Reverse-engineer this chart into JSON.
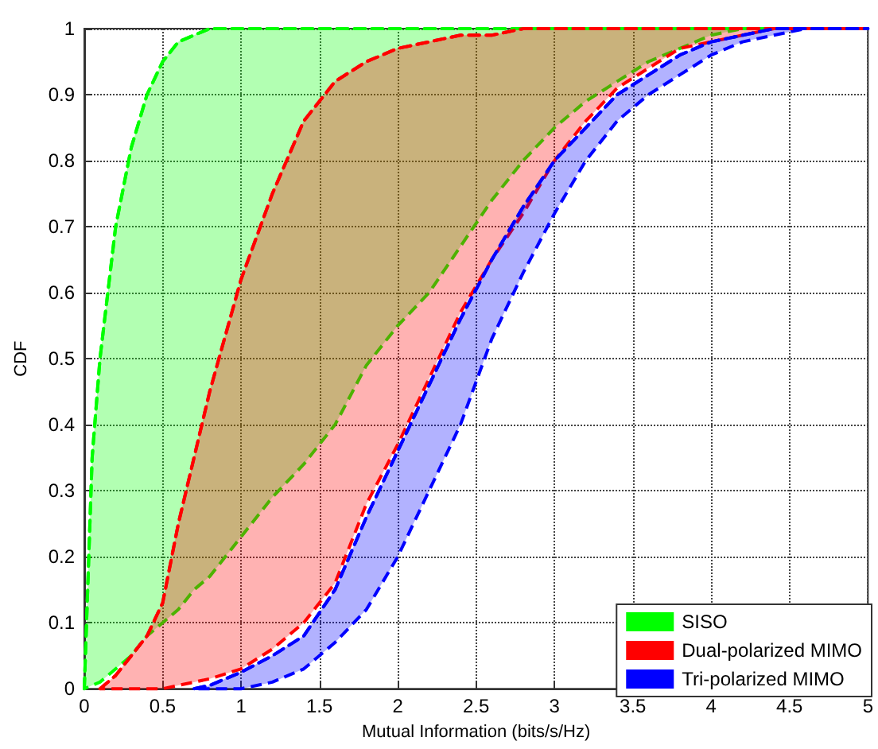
{
  "chart_data": {
    "type": "line",
    "xlabel": "Mutual Information (bits/s/Hz)",
    "ylabel": "CDF",
    "x": [
      0,
      0.05,
      0.1,
      0.2,
      0.3,
      0.4,
      0.5,
      0.6,
      0.7,
      0.8,
      1.0,
      1.2,
      1.4,
      1.6,
      1.8,
      2.0,
      2.2,
      2.4,
      2.6,
      2.8,
      3.0,
      3.2,
      3.4,
      3.6,
      3.8,
      4.0,
      4.2,
      4.4,
      4.6,
      4.8,
      5.0
    ],
    "series": [
      {
        "name": "SISO",
        "color": "#00ff00",
        "values": [
          0,
          0.35,
          0.5,
          0.7,
          0.82,
          0.9,
          0.95,
          0.98,
          0.99,
          1,
          1,
          1,
          1,
          1,
          1,
          1,
          1,
          1,
          1,
          1,
          1,
          1,
          1,
          1,
          1,
          1,
          1,
          1,
          null,
          null,
          null
        ],
        "upper": [
          0,
          0.35,
          0.5,
          0.7,
          0.82,
          0.9,
          0.95,
          0.98,
          0.99,
          1,
          1,
          1,
          1,
          1,
          1,
          1,
          1,
          1,
          1,
          1,
          1,
          1,
          1,
          1,
          1,
          1,
          1,
          1,
          null,
          null,
          null
        ],
        "lower": [
          0,
          0.005,
          0.01,
          0.03,
          0.05,
          0.08,
          0.1,
          0.12,
          0.15,
          0.17,
          0.23,
          0.29,
          0.34,
          0.4,
          0.49,
          0.55,
          0.6,
          0.67,
          0.74,
          0.8,
          0.85,
          0.89,
          0.92,
          0.95,
          0.97,
          0.99,
          1,
          1,
          null,
          null,
          null
        ]
      },
      {
        "name": "Dual-polarized MIMO",
        "color": "#ff0000",
        "values": [
          null,
          null,
          0,
          0.02,
          0.05,
          0.08,
          0.13,
          0.25,
          0.35,
          0.45,
          0.62,
          0.75,
          0.86,
          0.92,
          0.95,
          0.97,
          0.98,
          0.99,
          0.99,
          1,
          1,
          1,
          1,
          1,
          1,
          1,
          1,
          1,
          1,
          1,
          1
        ],
        "upper": [
          null,
          null,
          0,
          0.02,
          0.05,
          0.08,
          0.13,
          0.25,
          0.35,
          0.45,
          0.62,
          0.75,
          0.86,
          0.92,
          0.95,
          0.97,
          0.98,
          0.99,
          0.99,
          1,
          1,
          1,
          1,
          1,
          1,
          1,
          1,
          1,
          1,
          1,
          1
        ],
        "lower": [
          null,
          null,
          0,
          0,
          0,
          0,
          0,
          0.005,
          0.01,
          0.015,
          0.03,
          0.06,
          0.1,
          0.16,
          0.28,
          0.37,
          0.47,
          0.57,
          0.65,
          0.72,
          0.8,
          0.86,
          0.91,
          0.94,
          0.97,
          0.98,
          0.99,
          1,
          1,
          1,
          1
        ]
      },
      {
        "name": "Tri-polarized MIMO",
        "color": "#0000ff",
        "values": [
          null,
          null,
          null,
          null,
          null,
          null,
          null,
          null,
          0,
          0.005,
          0.025,
          0.05,
          0.08,
          0.15,
          0.26,
          0.36,
          0.46,
          0.56,
          0.65,
          0.73,
          0.8,
          0.85,
          0.9,
          0.93,
          0.96,
          0.98,
          0.99,
          1,
          1,
          1,
          1
        ],
        "upper": [
          null,
          null,
          null,
          null,
          null,
          null,
          null,
          null,
          0,
          0.005,
          0.025,
          0.05,
          0.08,
          0.15,
          0.26,
          0.36,
          0.46,
          0.56,
          0.65,
          0.73,
          0.8,
          0.85,
          0.9,
          0.93,
          0.96,
          0.98,
          0.99,
          1,
          1,
          1,
          1
        ],
        "lower": [
          null,
          null,
          null,
          null,
          null,
          null,
          null,
          null,
          0,
          0,
          0,
          0.01,
          0.03,
          0.07,
          0.12,
          0.2,
          0.3,
          0.4,
          0.53,
          0.63,
          0.72,
          0.8,
          0.86,
          0.9,
          0.93,
          0.96,
          0.98,
          0.99,
          1,
          1,
          1
        ]
      }
    ],
    "xlim": [
      0,
      5
    ],
    "xticks": [
      0,
      0.5,
      1,
      1.5,
      2,
      2.5,
      3,
      3.5,
      4,
      4.5,
      5
    ],
    "ylim": [
      0,
      1
    ],
    "yticks": [
      0,
      0.1,
      0.2,
      0.3,
      0.4,
      0.5,
      0.6,
      0.7,
      0.8,
      0.9,
      1
    ],
    "grid": true,
    "legend": "bottom right",
    "line_style": "dashed",
    "marker": "none"
  }
}
